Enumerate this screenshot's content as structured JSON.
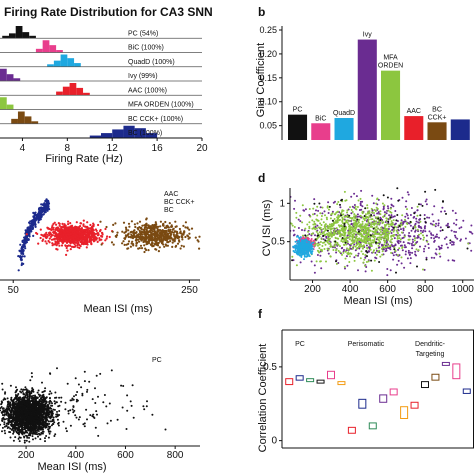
{
  "chart_data": [
    {
      "panel": "a",
      "type": "histogram",
      "title": "Firing Rate Distribution for CA3 SNN",
      "xlabel": "Firing Rate (Hz)",
      "x_ticks": [
        4,
        8,
        12,
        16,
        20
      ],
      "xlim": [
        2,
        20
      ],
      "series": [
        {
          "name": "PC (54%)",
          "color": "#111111",
          "bins": [
            [
              2.2,
              2.8,
              2
            ],
            [
              2.8,
              3.4,
              4
            ],
            [
              3.4,
              4.0,
              10
            ],
            [
              4.0,
              4.6,
              5
            ],
            [
              4.6,
              5.2,
              2
            ]
          ]
        },
        {
          "name": "BiC (100%)",
          "color": "#e83e8c",
          "bins": [
            [
              5.2,
              5.8,
              3
            ],
            [
              5.8,
              6.4,
              10
            ],
            [
              6.4,
              7.0,
              6
            ],
            [
              7.0,
              7.6,
              2
            ]
          ]
        },
        {
          "name": "QuadD (100%)",
          "color": "#1fa8e0",
          "bins": [
            [
              6.2,
              6.8,
              2
            ],
            [
              6.8,
              7.4,
              5
            ],
            [
              7.4,
              8.0,
              10
            ],
            [
              8.0,
              8.6,
              7
            ],
            [
              8.6,
              9.2,
              3
            ]
          ]
        },
        {
          "name": "Ivy (99%)",
          "color": "#6a2c91",
          "bins": [
            [
              2.0,
              2.6,
              9
            ],
            [
              2.6,
              3.2,
              5
            ],
            [
              3.2,
              3.8,
              2
            ]
          ]
        },
        {
          "name": "AAC (100%)",
          "color": "#e8202a",
          "bins": [
            [
              7.0,
              7.6,
              3
            ],
            [
              7.6,
              8.2,
              7
            ],
            [
              8.2,
              8.8,
              10
            ],
            [
              8.8,
              9.4,
              6
            ],
            [
              9.4,
              10.0,
              2
            ]
          ]
        },
        {
          "name": "MFA ORDEN (100%)",
          "color": "#8cc63f",
          "bins": [
            [
              2.0,
              2.6,
              10
            ],
            [
              2.6,
              3.2,
              4
            ]
          ]
        },
        {
          "name": "BC CCK+ (100%)",
          "color": "#7a4a12",
          "bins": [
            [
              3.0,
              3.6,
              4
            ],
            [
              3.6,
              4.2,
              10
            ],
            [
              4.2,
              4.8,
              6
            ],
            [
              4.8,
              5.4,
              2
            ]
          ]
        },
        {
          "name": "BC (100%)",
          "color": "#1c2a8c",
          "bins": [
            [
              10.0,
              11.0,
              2
            ],
            [
              11.0,
              12.0,
              4
            ],
            [
              12.0,
              13.0,
              7
            ],
            [
              13.0,
              14.0,
              10
            ],
            [
              14.0,
              15.0,
              8
            ],
            [
              15.0,
              16.0,
              4
            ]
          ]
        }
      ]
    },
    {
      "panel": "b",
      "type": "bar",
      "ylabel": "Gini Coefficient",
      "ylim": [
        0.02,
        0.25
      ],
      "y_ticks": [
        0.05,
        0.1,
        0.15,
        0.2,
        0.25
      ],
      "y_tick_labels": [
        "0.05",
        "0.10",
        "0.15",
        "0.20",
        "0.25"
      ],
      "categories": [
        "PC",
        "BiC",
        "QuadD",
        "Ivy",
        "MFA ORDEN",
        "AAC",
        "BC CCK+",
        "BC"
      ],
      "bar_labels": [
        "PC",
        "BiC",
        "QuadD",
        "Ivy",
        "MFA\nORDEN",
        "AAC",
        "BC\nCCK+",
        ""
      ],
      "values": [
        0.073,
        0.055,
        0.066,
        0.23,
        0.165,
        0.07,
        0.057,
        0.063
      ],
      "colors": [
        "#111111",
        "#e83e8c",
        "#1fa8e0",
        "#6a2c91",
        "#8cc63f",
        "#e8202a",
        "#7a4a12",
        "#1c2a8c"
      ],
      "label_colors": [
        "#111111",
        "#e83e8c",
        "#1fa8e0",
        "#6a2c91",
        "#8cc63f",
        "#e8202a",
        "#111111",
        "#1c2a8c"
      ]
    },
    {
      "panel": "c",
      "type": "scatter",
      "xlabel": "Mean ISI (ms)",
      "xlim": [
        35,
        262
      ],
      "x_ticks": [
        50,
        250
      ],
      "legend": [
        {
          "name": "AAC",
          "color": "#e8202a"
        },
        {
          "name": "BC CCK+",
          "color": "#7a4a12"
        },
        {
          "name": "BC",
          "color": "#1c2a8c"
        }
      ],
      "clusters": [
        {
          "name": "BC",
          "color": "#1c2a8c",
          "shape": "arc",
          "x_range": [
            58,
            90
          ],
          "n": 380
        },
        {
          "name": "AAC",
          "color": "#e8202a",
          "x_center": 118,
          "x_sd": 14,
          "y_center": 0.5,
          "y_sd": 0.055,
          "n": 900
        },
        {
          "name": "BC CCK+",
          "color": "#7a4a12",
          "x_center": 210,
          "x_sd": 18,
          "y_center": 0.5,
          "y_sd": 0.07,
          "n": 550
        }
      ]
    },
    {
      "panel": "d",
      "type": "scatter",
      "ylabel": "CV ISI (ms)",
      "xlabel": "Mean ISI (ms)",
      "xlim": [
        80,
        1060
      ],
      "ylim": [
        0.0,
        1.2
      ],
      "x_ticks": [
        200,
        400,
        600,
        800,
        1000
      ],
      "y_ticks": [
        0.5,
        1.0
      ],
      "y_tick_labels": [
        "0.5",
        "1"
      ],
      "clusters": [
        {
          "name": "Ivy",
          "color": "#6a2c91",
          "x_center": 560,
          "x_sd": 230,
          "y_center": 0.62,
          "y_sd": 0.22,
          "n": 650
        },
        {
          "name": "MFA ORDEN",
          "color": "#8cc63f",
          "x_center": 430,
          "x_sd": 140,
          "y_center": 0.62,
          "y_sd": 0.16,
          "n": 900
        },
        {
          "name": "PC",
          "color": "#111111",
          "x_center": 520,
          "x_sd": 220,
          "y_center": 0.7,
          "y_sd": 0.25,
          "n": 70
        },
        {
          "name": "BiC",
          "color": "#e83e8c",
          "x_center": 160,
          "x_sd": 20,
          "y_center": 0.46,
          "y_sd": 0.04,
          "n": 260
        },
        {
          "name": "QuadD",
          "color": "#1fa8e0",
          "x_center": 150,
          "x_sd": 22,
          "y_center": 0.42,
          "y_sd": 0.05,
          "n": 380
        }
      ]
    },
    {
      "panel": "e",
      "type": "scatter",
      "xlabel": "Mean ISI (ms)",
      "xlim": [
        95,
        900
      ],
      "x_ticks": [
        200,
        400,
        600,
        800
      ],
      "legend": [
        {
          "name": "PC",
          "color": "#111111"
        }
      ],
      "clusters": [
        {
          "name": "PC",
          "color": "#111111",
          "x_center": 210,
          "x_sd": 45,
          "y_center": 0.33,
          "y_sd": 0.1,
          "n": 2200
        },
        {
          "name": "PC",
          "color": "#111111",
          "x_center": 430,
          "x_sd": 140,
          "y_center": 0.45,
          "y_sd": 0.16,
          "n": 120
        }
      ]
    },
    {
      "panel": "f",
      "type": "box",
      "ylabel": "Correlation Coefficient",
      "ylim": [
        -0.05,
        0.75
      ],
      "y_ticks": [
        0,
        0.5
      ],
      "y_tick_labels": [
        "0",
        "0.5"
      ],
      "group_labels": [
        "PC",
        "Perisomatic",
        "Dendritic-\nTargeting"
      ],
      "boxes": [
        {
          "x": 1,
          "low": 0.38,
          "high": 0.42,
          "color": "#e8202a"
        },
        {
          "x": 2,
          "low": 0.41,
          "high": 0.44,
          "color": "#1c2a8c"
        },
        {
          "x": 3,
          "low": 0.4,
          "high": 0.42,
          "color": "#2e8b57"
        },
        {
          "x": 4,
          "low": 0.39,
          "high": 0.41,
          "color": "#111111"
        },
        {
          "x": 5,
          "low": 0.42,
          "high": 0.47,
          "color": "#e83e8c"
        },
        {
          "x": 6,
          "low": 0.38,
          "high": 0.4,
          "color": "#f39c12"
        },
        {
          "x": 7,
          "low": 0.05,
          "high": 0.09,
          "color": "#e8202a"
        },
        {
          "x": 8,
          "low": 0.22,
          "high": 0.28,
          "color": "#1c2a8c"
        },
        {
          "x": 9,
          "low": 0.08,
          "high": 0.12,
          "color": "#2e8b57"
        },
        {
          "x": 10,
          "low": 0.26,
          "high": 0.31,
          "color": "#6a2c91"
        },
        {
          "x": 11,
          "low": 0.31,
          "high": 0.35,
          "color": "#e83e8c"
        },
        {
          "x": 12,
          "low": 0.15,
          "high": 0.23,
          "color": "#f39c12"
        },
        {
          "x": 13,
          "low": 0.22,
          "high": 0.26,
          "color": "#e8202a"
        },
        {
          "x": 14,
          "low": 0.36,
          "high": 0.4,
          "color": "#111111"
        },
        {
          "x": 15,
          "low": 0.41,
          "high": 0.45,
          "color": "#7a4a12"
        },
        {
          "x": 16,
          "low": 0.51,
          "high": 0.53,
          "color": "#6a2c91"
        },
        {
          "x": 17,
          "low": 0.42,
          "high": 0.52,
          "color": "#e83e8c"
        },
        {
          "x": 18,
          "low": 0.32,
          "high": 0.35,
          "color": "#1c2a8c"
        }
      ]
    }
  ],
  "panel_letters": {
    "b": "b",
    "d": "d",
    "f": "f"
  }
}
